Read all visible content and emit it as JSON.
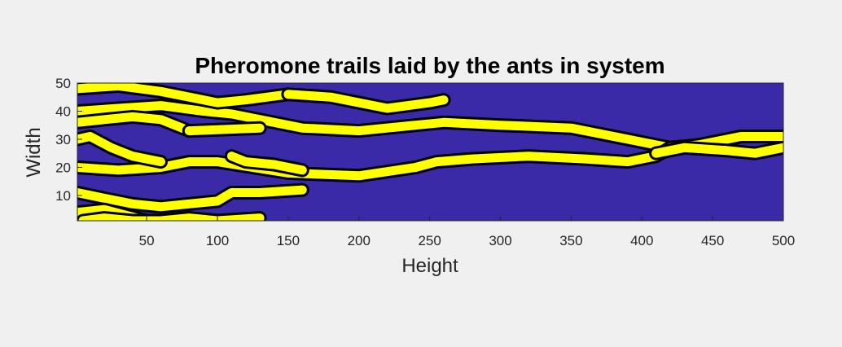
{
  "chart_data": {
    "type": "heatmap",
    "title": "Pheromone trails laid by the ants in system",
    "xlabel": "Height",
    "ylabel": "Width",
    "xlim": [
      1,
      500
    ],
    "ylim": [
      1,
      50
    ],
    "x_ticks": [
      50,
      100,
      150,
      200,
      250,
      300,
      350,
      400,
      450,
      500
    ],
    "y_ticks": [
      10,
      20,
      30,
      40,
      50
    ],
    "grid": false,
    "colors": {
      "background": "#3b2aa8",
      "trail": "#ffff00",
      "contour": "#000000"
    },
    "trails": [
      {
        "x": [
          1,
          30,
          60,
          90,
          110,
          130,
          160,
          200,
          240,
          260,
          300,
          350,
          380,
          410,
          420,
          450,
          470,
          500
        ],
        "y": [
          40,
          41,
          42,
          40,
          39,
          37,
          34,
          33,
          35,
          36,
          35,
          34,
          31,
          28,
          27,
          28,
          31,
          31
        ]
      },
      {
        "x": [
          1,
          30,
          60,
          80,
          100,
          150,
          200,
          240,
          255,
          280,
          320,
          360,
          390,
          410,
          420,
          440,
          470,
          500
        ],
        "y": [
          20,
          19,
          20,
          22,
          22,
          18,
          17,
          20,
          22,
          23,
          24,
          23,
          22,
          24,
          27,
          28,
          31,
          31
        ]
      },
      {
        "x": [
          1,
          30,
          60,
          80,
          100,
          120,
          150
        ],
        "y": [
          48,
          49,
          47,
          45,
          43,
          44,
          46
        ]
      },
      {
        "x": [
          150,
          180,
          220,
          250,
          260
        ],
        "y": [
          46,
          45,
          41,
          43,
          44
        ]
      },
      {
        "x": [
          1,
          20,
          40,
          60,
          80
        ],
        "y": [
          36,
          37,
          38,
          37,
          33
        ]
      },
      {
        "x": [
          80,
          130
        ],
        "y": [
          33,
          34
        ]
      },
      {
        "x": [
          1,
          20,
          40,
          60,
          80,
          100,
          110,
          130,
          160
        ],
        "y": [
          11,
          9,
          7,
          6,
          7,
          8,
          11,
          11,
          12
        ]
      },
      {
        "x": [
          110,
          120,
          140,
          160
        ],
        "y": [
          24,
          22,
          21,
          19
        ]
      },
      {
        "x": [
          1,
          10,
          25,
          40,
          60
        ],
        "y": [
          30,
          31,
          27,
          24,
          22
        ]
      },
      {
        "x": [
          1,
          20,
          35,
          50
        ],
        "y": [
          4,
          5,
          3,
          1
        ]
      },
      {
        "x": [
          5,
          20,
          40,
          60,
          80,
          100,
          130
        ],
        "y": [
          1,
          2,
          1,
          1,
          2,
          1,
          2
        ]
      },
      {
        "x": [
          410,
          430,
          460,
          480,
          500
        ],
        "y": [
          25,
          27,
          26,
          25,
          27
        ]
      }
    ]
  }
}
